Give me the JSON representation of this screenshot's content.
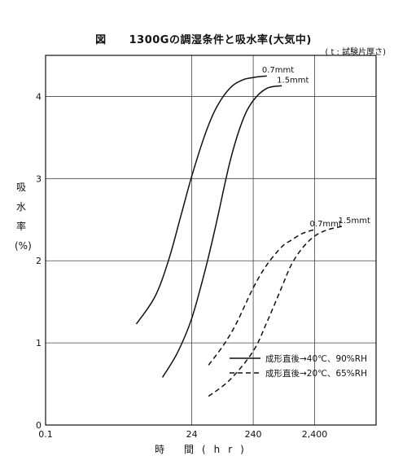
{
  "figure": {
    "fig_label": "図",
    "title": "1300Gの調湿条件と吸水率(大気中)",
    "note": "( t : 試験片厚さ)",
    "ylabel_chars": [
      "吸",
      "水",
      "率",
      "(%)"
    ],
    "xlabel": "時 間(hr)"
  },
  "chart_data": {
    "type": "line",
    "title": "1300Gの調湿条件と吸水率(大気中)",
    "xlabel": "時 間(hr)",
    "ylabel": "吸水率(%)",
    "x_scale": "log",
    "xlim": [
      0.1,
      24000
    ],
    "ylim": [
      0,
      4.5
    ],
    "xticks": [
      0.1,
      24,
      240,
      2400
    ],
    "xtick_labels": [
      "0.1",
      "24",
      "240",
      "2,400"
    ],
    "yticks": [
      0,
      1,
      2,
      3,
      4
    ],
    "ytick_labels": [
      "0",
      "1",
      "2",
      "3",
      "4"
    ],
    "grid": true,
    "legend_position": "bottom-right",
    "series": [
      {
        "name": "成形直後→40℃、90%RH",
        "label": "0.7mmt",
        "style": "solid",
        "x": [
          3,
          6,
          10,
          16,
          24,
          40,
          60,
          100,
          160,
          240,
          400
        ],
        "y": [
          1.23,
          1.56,
          2.0,
          2.55,
          3.03,
          3.55,
          3.86,
          4.1,
          4.2,
          4.23,
          4.25
        ]
      },
      {
        "name": "成形直後→40℃、90%RH",
        "label": "1.5mmt",
        "style": "solid",
        "x": [
          8,
          14,
          24,
          40,
          60,
          100,
          160,
          240,
          400,
          700
        ],
        "y": [
          0.58,
          0.88,
          1.3,
          1.9,
          2.45,
          3.2,
          3.7,
          3.95,
          4.1,
          4.13
        ]
      },
      {
        "name": "成形直後→20℃、65%RH",
        "label": "0.7mmt",
        "style": "dashed",
        "x": [
          45,
          80,
          130,
          240,
          400,
          700,
          1000,
          1500,
          2400
        ],
        "y": [
          0.73,
          0.98,
          1.25,
          1.67,
          1.95,
          2.17,
          2.25,
          2.33,
          2.38
        ]
      },
      {
        "name": "成形直後→20℃、65%RH",
        "label": "1.5mmt",
        "style": "dashed",
        "x": [
          45,
          100,
          240,
          400,
          700,
          1000,
          1500,
          2400,
          4000,
          7000
        ],
        "y": [
          0.35,
          0.55,
          0.9,
          1.25,
          1.68,
          1.95,
          2.15,
          2.3,
          2.38,
          2.42
        ]
      }
    ],
    "legend": [
      {
        "label": "成形直後→40℃、90%RH",
        "style": "solid"
      },
      {
        "label": "成形直後→20℃、65%RH",
        "style": "dashed"
      }
    ]
  }
}
